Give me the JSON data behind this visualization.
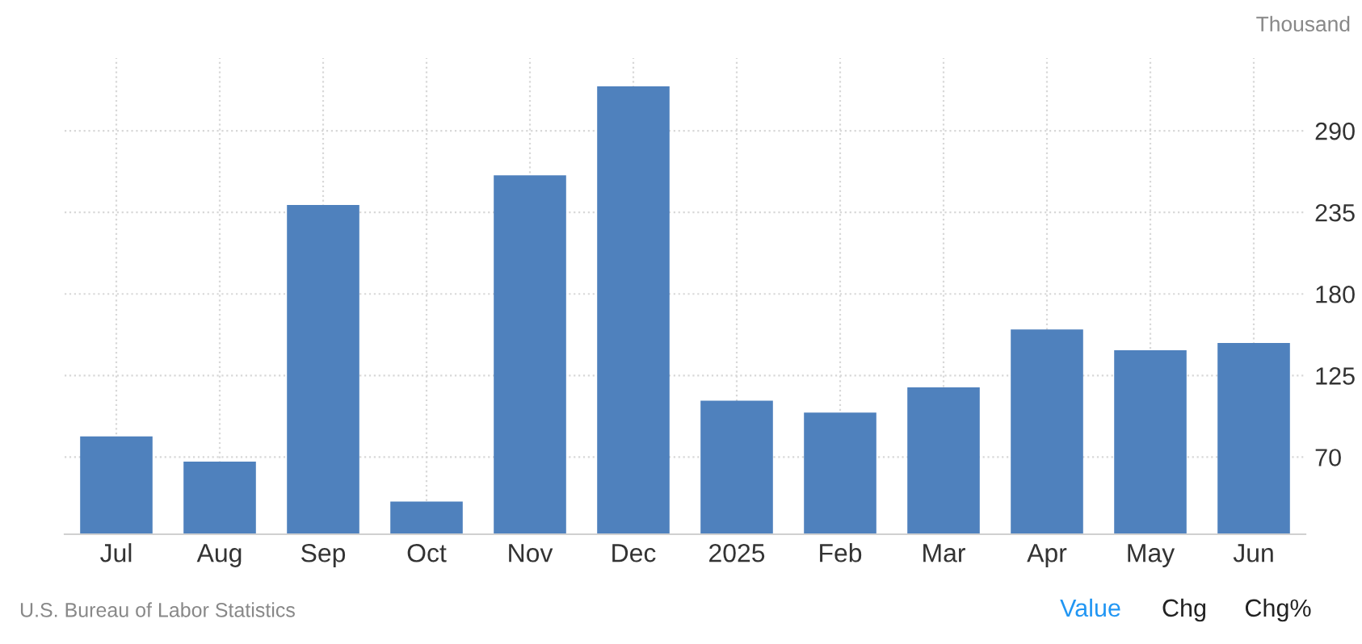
{
  "chart_data": {
    "type": "bar",
    "categories": [
      "Jul",
      "Aug",
      "Sep",
      "Oct",
      "Nov",
      "Dec",
      "2025",
      "Feb",
      "Mar",
      "Apr",
      "May",
      "Jun"
    ],
    "values": [
      84,
      67,
      240,
      40,
      260,
      320,
      108,
      100,
      117,
      156,
      142,
      147
    ],
    "color": "#4f81bd",
    "ylabel": "Thousand",
    "ylim": [
      18,
      339
    ],
    "yticks": [
      70,
      125,
      180,
      235,
      290
    ],
    "grid": true,
    "annotations": [
      "U.S. Bureau of Labor Statistics",
      "Value",
      "Chg",
      "Chg%"
    ]
  }
}
